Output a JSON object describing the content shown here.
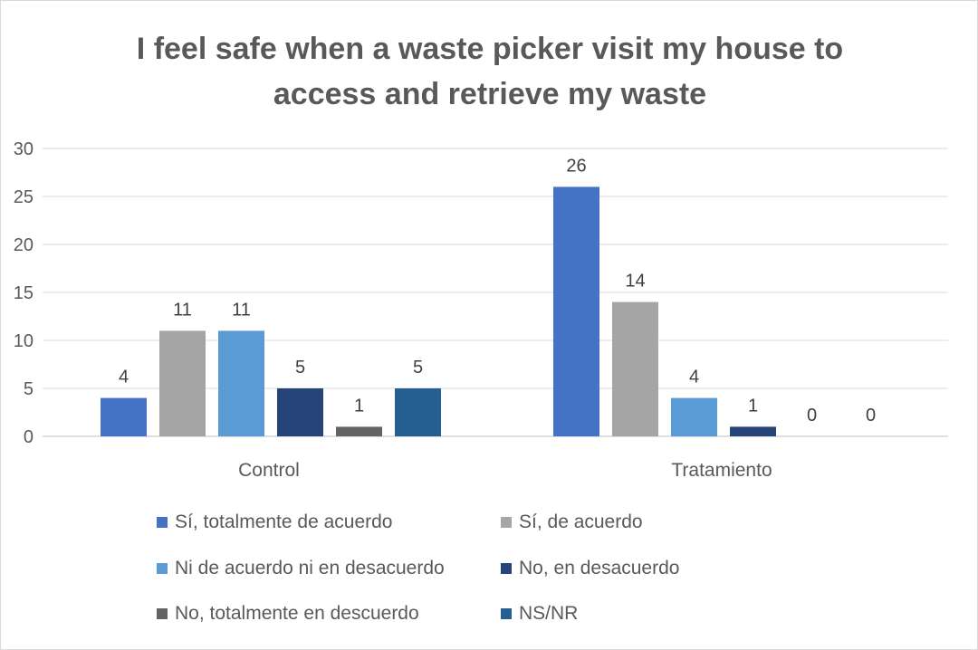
{
  "chart_data": {
    "type": "bar",
    "title": "I feel safe when a waste picker visit my house to\naccess and retrieve my waste",
    "categories": [
      "Control",
      "Tratamiento"
    ],
    "series": [
      {
        "name": "Sí, totalmente de acuerdo",
        "values": [
          4,
          26
        ],
        "color": "#4472c4"
      },
      {
        "name": "Sí, de acuerdo",
        "values": [
          11,
          14
        ],
        "color": "#a5a5a5"
      },
      {
        "name": "Ni de acuerdo ni en desacuerdo",
        "values": [
          11,
          4
        ],
        "color": "#5b9bd5"
      },
      {
        "name": "No, en desacuerdo",
        "values": [
          5,
          1
        ],
        "color": "#264478"
      },
      {
        "name": "No, totalmente en descuerdo",
        "values": [
          1,
          0
        ],
        "color": "#636363"
      },
      {
        "name": "NS/NR",
        "values": [
          5,
          0
        ],
        "color": "#255e91"
      }
    ],
    "ylim": [
      0,
      30
    ],
    "yticks": [
      0,
      5,
      10,
      15,
      20,
      25,
      30
    ],
    "grid": true,
    "legend_position": "bottom",
    "data_labels": true
  }
}
